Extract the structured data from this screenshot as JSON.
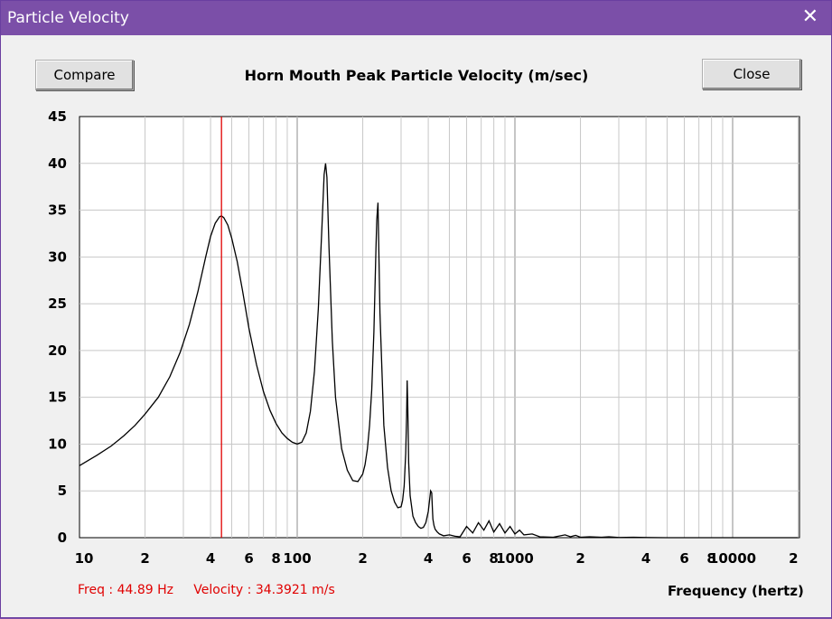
{
  "window": {
    "title": "Particle Velocity",
    "close_glyph": "✕"
  },
  "toolbar": {
    "compare_label": "Compare",
    "close_label": "Close"
  },
  "readout": {
    "freq": "Freq : 44.89 Hz",
    "velocity": "Velocity : 34.3921 m/s"
  },
  "colors": {
    "title_bar": "#7b4fa8",
    "curve": "#000000",
    "cursor": "#e00000",
    "grid": "#c8c8c8"
  },
  "chart_data": {
    "type": "line",
    "title": "Horn Mouth Peak Particle Velocity (m/sec)",
    "xlabel": "Frequency (hertz)",
    "ylabel": "",
    "x_scale": "log",
    "xlim": [
      10,
      20000
    ],
    "ylim": [
      0,
      45
    ],
    "grid": true,
    "yticks": [
      "0",
      "5",
      "10",
      "15",
      "20",
      "25",
      "30",
      "35",
      "40",
      "45"
    ],
    "xticks": [
      "10",
      "2",
      "4",
      "6",
      "8",
      "100",
      "2",
      "4",
      "6",
      "8",
      "1000",
      "2",
      "4",
      "6",
      "8",
      "10000",
      "2"
    ],
    "xtick_values": [
      10,
      20,
      40,
      60,
      80,
      100,
      200,
      400,
      600,
      800,
      1000,
      2000,
      4000,
      6000,
      8000,
      10000,
      20000
    ],
    "cursor_x": 44.89,
    "series": [
      {
        "x": [
          10,
          12,
          14,
          16,
          18,
          20,
          23,
          26,
          29,
          32,
          35,
          38,
          40,
          42,
          44,
          44.89,
          46,
          48,
          50,
          53,
          56,
          60,
          65,
          70,
          75,
          80,
          85,
          90,
          95,
          100,
          105,
          110,
          115,
          120,
          125,
          130,
          133,
          135,
          137,
          140,
          145,
          150,
          160,
          170,
          180,
          190,
          200,
          205,
          210,
          215,
          220,
          225,
          230,
          232,
          235,
          240,
          250,
          260,
          270,
          280,
          290,
          300,
          305,
          310,
          315,
          318,
          320,
          322,
          325,
          330,
          340,
          350,
          360,
          370,
          380,
          390,
          400,
          410,
          415,
          418,
          420,
          425,
          430,
          440,
          450,
          470,
          500,
          530,
          560,
          600,
          640,
          680,
          720,
          760,
          800,
          850,
          900,
          950,
          1000,
          1050,
          1100,
          1200,
          1300,
          1500,
          1700,
          1800,
          1900,
          2000,
          2200,
          2500,
          2700,
          3000,
          3500,
          4000,
          5000,
          6000,
          8000,
          10000,
          15000,
          20000
        ],
        "y": [
          7.7,
          8.8,
          9.8,
          10.9,
          12.0,
          13.2,
          15.0,
          17.2,
          19.8,
          22.8,
          26.3,
          30.0,
          32.2,
          33.6,
          34.3,
          34.39,
          34.2,
          33.4,
          32.0,
          29.5,
          26.5,
          22.4,
          18.5,
          15.6,
          13.6,
          12.2,
          11.2,
          10.6,
          10.2,
          10.0,
          10.2,
          11.2,
          13.5,
          17.8,
          24.5,
          33.5,
          38.8,
          40.0,
          38.5,
          31.0,
          21.0,
          15.0,
          9.5,
          7.2,
          6.1,
          6.0,
          6.8,
          7.8,
          9.5,
          12.0,
          15.8,
          22.0,
          31.0,
          34.0,
          35.8,
          24.0,
          12.0,
          7.5,
          5.0,
          3.8,
          3.2,
          3.3,
          4.0,
          5.5,
          9.0,
          13.0,
          16.8,
          14.0,
          8.0,
          4.5,
          2.3,
          1.6,
          1.2,
          1.0,
          1.1,
          1.6,
          2.8,
          5.0,
          4.8,
          3.0,
          2.0,
          1.3,
          0.9,
          0.6,
          0.4,
          0.2,
          0.3,
          0.15,
          0.1,
          1.2,
          0.5,
          1.6,
          0.8,
          1.8,
          0.6,
          1.5,
          0.5,
          1.2,
          0.4,
          0.8,
          0.3,
          0.4,
          0.1,
          0.05,
          0.3,
          0.1,
          0.25,
          0.05,
          0.1,
          0.05,
          0.1,
          0.02,
          0.05,
          0.02,
          0,
          0,
          0,
          0,
          0,
          0
        ]
      }
    ]
  }
}
